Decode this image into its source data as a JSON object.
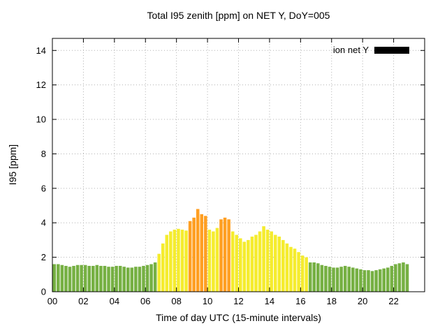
{
  "chart_data": {
    "type": "bar",
    "title": "Total I95 zenith [ppm] on NET Y, DoY=005",
    "xlabel": "Time of day UTC (15-minute intervals)",
    "ylabel": "I95 [ppm]",
    "legend": [
      {
        "label": "ion net Y",
        "swatch_color": "#000000"
      }
    ],
    "legend_position": "top-right",
    "grid": true,
    "ylim": [
      0,
      14.7
    ],
    "x_hours_range": [
      0,
      24
    ],
    "interval_minutes": 15,
    "y_ticks": [
      0,
      2,
      4,
      6,
      8,
      10,
      12,
      14
    ],
    "x_ticks": [
      "00",
      "02",
      "04",
      "06",
      "08",
      "10",
      "12",
      "14",
      "16",
      "18",
      "20",
      "22"
    ],
    "bar_colors": {
      "green": "#76b043",
      "yellow": "#f5ec2e",
      "orange": "#ff9f22"
    },
    "color_rule": {
      "green_below": 2.0,
      "orange_at_or_above": 4.0
    },
    "times": [
      "00:00",
      "00:15",
      "00:30",
      "00:45",
      "01:00",
      "01:15",
      "01:30",
      "01:45",
      "02:00",
      "02:15",
      "02:30",
      "02:45",
      "03:00",
      "03:15",
      "03:30",
      "03:45",
      "04:00",
      "04:15",
      "04:30",
      "04:45",
      "05:00",
      "05:15",
      "05:30",
      "05:45",
      "06:00",
      "06:15",
      "06:30",
      "06:45",
      "07:00",
      "07:15",
      "07:30",
      "07:45",
      "08:00",
      "08:15",
      "08:30",
      "08:45",
      "09:00",
      "09:15",
      "09:30",
      "09:45",
      "10:00",
      "10:15",
      "10:30",
      "10:45",
      "11:00",
      "11:15",
      "11:30",
      "11:45",
      "12:00",
      "12:15",
      "12:30",
      "12:45",
      "13:00",
      "13:15",
      "13:30",
      "13:45",
      "14:00",
      "14:15",
      "14:30",
      "14:45",
      "15:00",
      "15:15",
      "15:30",
      "15:45",
      "16:00",
      "16:15",
      "16:30",
      "16:45",
      "17:00",
      "17:15",
      "17:30",
      "17:45",
      "18:00",
      "18:15",
      "18:30",
      "18:45",
      "19:00",
      "19:15",
      "19:30",
      "19:45",
      "20:00",
      "20:15",
      "20:30",
      "20:45",
      "21:00",
      "21:15",
      "21:30",
      "21:45",
      "22:00",
      "22:15",
      "22:30",
      "22:45"
    ],
    "values": [
      1.6,
      1.6,
      1.55,
      1.5,
      1.45,
      1.5,
      1.55,
      1.55,
      1.55,
      1.5,
      1.5,
      1.55,
      1.5,
      1.5,
      1.45,
      1.45,
      1.5,
      1.5,
      1.45,
      1.4,
      1.4,
      1.45,
      1.45,
      1.5,
      1.55,
      1.6,
      1.7,
      2.2,
      2.8,
      3.3,
      3.5,
      3.6,
      3.65,
      3.6,
      3.55,
      4.1,
      4.3,
      4.8,
      4.5,
      4.4,
      3.6,
      3.5,
      3.7,
      4.2,
      4.3,
      4.2,
      3.5,
      3.3,
      3.1,
      2.9,
      3.0,
      3.2,
      3.3,
      3.5,
      3.8,
      3.6,
      3.5,
      3.3,
      3.2,
      3.0,
      2.8,
      2.6,
      2.5,
      2.3,
      2.1,
      2.0,
      1.7,
      1.7,
      1.65,
      1.55,
      1.5,
      1.45,
      1.4,
      1.4,
      1.45,
      1.5,
      1.45,
      1.4,
      1.35,
      1.3,
      1.25,
      1.25,
      1.2,
      1.25,
      1.3,
      1.35,
      1.4,
      1.5,
      1.6,
      1.65,
      1.7,
      1.6
    ]
  }
}
